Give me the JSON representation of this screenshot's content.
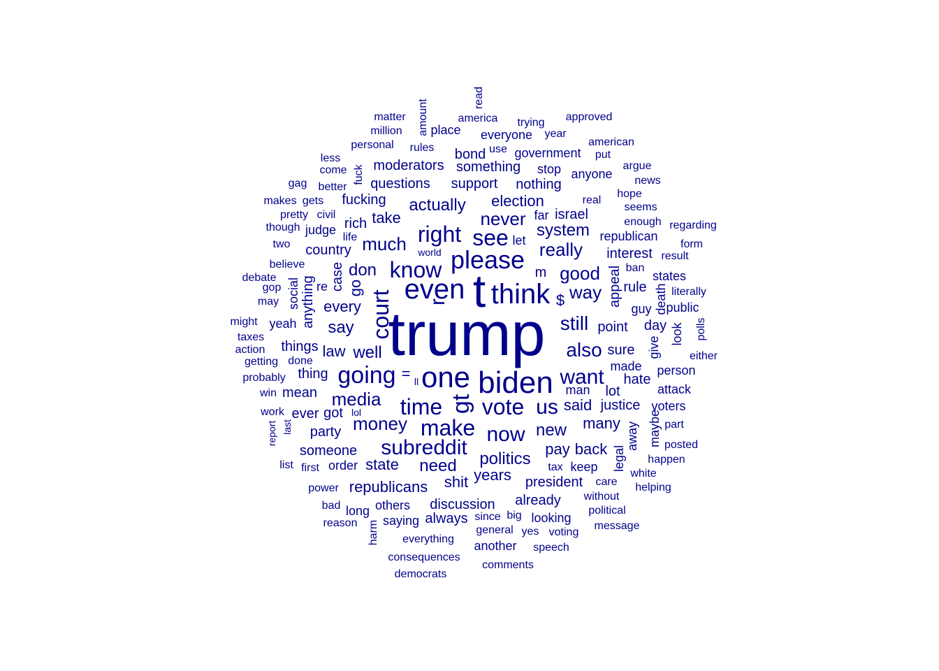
{
  "color": "#00008B",
  "words": [
    {
      "text": "trump",
      "size": 88
    },
    {
      "text": "t",
      "size": 66
    },
    {
      "text": "biden",
      "size": 44
    },
    {
      "text": "one",
      "size": 42
    },
    {
      "text": "even",
      "size": 40
    },
    {
      "text": "think",
      "size": 40
    },
    {
      "text": "please",
      "size": 36
    },
    {
      "text": "going",
      "size": 34
    },
    {
      "text": "gt",
      "size": 34
    },
    {
      "text": "court",
      "size": 32
    },
    {
      "text": "know",
      "size": 32
    },
    {
      "text": "right",
      "size": 32
    },
    {
      "text": "see",
      "size": 32
    },
    {
      "text": "time",
      "size": 32
    },
    {
      "text": "make",
      "size": 32
    },
    {
      "text": "vote",
      "size": 32
    },
    {
      "text": "us",
      "size": 30
    },
    {
      "text": "want",
      "size": 30
    },
    {
      "text": "subreddit",
      "size": 30
    },
    {
      "text": "now",
      "size": 30
    },
    {
      "text": "still",
      "size": 28
    },
    {
      "text": "also",
      "size": 28
    },
    {
      "text": "much",
      "size": 26
    },
    {
      "text": "media",
      "size": 26
    },
    {
      "text": "money",
      "size": 26
    },
    {
      "text": "never",
      "size": 26
    },
    {
      "text": "really",
      "size": 26
    },
    {
      "text": "way",
      "size": 26
    },
    {
      "text": "good",
      "size": 26
    },
    {
      "text": "actually",
      "size": 24
    },
    {
      "text": "don",
      "size": 24
    },
    {
      "text": "system",
      "size": 24
    },
    {
      "text": "say",
      "size": 24
    },
    {
      "text": "well",
      "size": 24
    },
    {
      "text": "election",
      "size": 22
    },
    {
      "text": "take",
      "size": 22
    },
    {
      "text": "every",
      "size": 22
    },
    {
      "text": "go",
      "size": 22
    },
    {
      "text": "case",
      "size": 20
    },
    {
      "text": "law",
      "size": 22
    },
    {
      "text": "said",
      "size": 22
    },
    {
      "text": "new",
      "size": 24
    },
    {
      "text": "many",
      "size": 22
    },
    {
      "text": "need",
      "size": 24
    },
    {
      "text": "politics",
      "size": 24
    },
    {
      "text": "pay",
      "size": 22
    },
    {
      "text": "back",
      "size": 22
    },
    {
      "text": "state",
      "size": 22
    },
    {
      "text": "years",
      "size": 22
    },
    {
      "text": "president",
      "size": 20
    },
    {
      "text": "republicans",
      "size": 22
    },
    {
      "text": "shit",
      "size": 22
    },
    {
      "text": "r",
      "size": 30
    },
    {
      "text": "m",
      "size": 20
    },
    {
      "text": "$",
      "size": 22
    },
    {
      "text": "=",
      "size": 22
    },
    {
      "text": "ll",
      "size": 14
    },
    {
      "text": "appeal",
      "size": 20
    },
    {
      "text": "point",
      "size": 20
    },
    {
      "text": "sure",
      "size": 20
    },
    {
      "text": "interest",
      "size": 20
    },
    {
      "text": "israel",
      "size": 20
    },
    {
      "text": "far",
      "size": 18
    },
    {
      "text": "republican",
      "size": 18
    },
    {
      "text": "support",
      "size": 20
    },
    {
      "text": "nothing",
      "size": 20
    },
    {
      "text": "questions",
      "size": 20
    },
    {
      "text": "fucking",
      "size": 20
    },
    {
      "text": "moderators",
      "size": 20
    },
    {
      "text": "something",
      "size": 20
    },
    {
      "text": "rich",
      "size": 20
    },
    {
      "text": "country",
      "size": 20
    },
    {
      "text": "judge",
      "size": 18
    },
    {
      "text": "anything",
      "size": 20
    },
    {
      "text": "social",
      "size": 18
    },
    {
      "text": "things",
      "size": 20
    },
    {
      "text": "thing",
      "size": 20
    },
    {
      "text": "mean",
      "size": 20
    },
    {
      "text": "ever",
      "size": 20
    },
    {
      "text": "got",
      "size": 20
    },
    {
      "text": "party",
      "size": 20
    },
    {
      "text": "someone",
      "size": 20
    },
    {
      "text": "order",
      "size": 18
    },
    {
      "text": "discussion",
      "size": 20
    },
    {
      "text": "already",
      "size": 20
    },
    {
      "text": "always",
      "size": 20
    },
    {
      "text": "saying",
      "size": 18
    },
    {
      "text": "looking",
      "size": 18
    },
    {
      "text": "lot",
      "size": 20
    },
    {
      "text": "justice",
      "size": 20
    },
    {
      "text": "hate",
      "size": 20
    },
    {
      "text": "made",
      "size": 18
    },
    {
      "text": "day",
      "size": 20
    },
    {
      "text": "rule",
      "size": 20
    },
    {
      "text": "guy",
      "size": 18
    },
    {
      "text": "death",
      "size": 18
    },
    {
      "text": "give",
      "size": 18
    },
    {
      "text": "look",
      "size": 18
    },
    {
      "text": "away",
      "size": 18
    },
    {
      "text": "legal",
      "size": 18
    },
    {
      "text": "maybe",
      "size": 18
    },
    {
      "text": "bond",
      "size": 20
    },
    {
      "text": "use",
      "size": 16
    },
    {
      "text": "government",
      "size": 18
    },
    {
      "text": "stop",
      "size": 18
    },
    {
      "text": "anyone",
      "size": 18
    },
    {
      "text": "let",
      "size": 18
    },
    {
      "text": "re",
      "size": 18
    },
    {
      "text": "yeah",
      "size": 18
    },
    {
      "text": "matter",
      "size": 16
    },
    {
      "text": "million",
      "size": 16
    },
    {
      "text": "personal",
      "size": 16
    },
    {
      "text": "amount",
      "size": 16
    },
    {
      "text": "place",
      "size": 18
    },
    {
      "text": "rules",
      "size": 16
    },
    {
      "text": "america",
      "size": 16
    },
    {
      "text": "read",
      "size": 16
    },
    {
      "text": "trying",
      "size": 16
    },
    {
      "text": "everyone",
      "size": 18
    },
    {
      "text": "year",
      "size": 16
    },
    {
      "text": "approved",
      "size": 16
    },
    {
      "text": "american",
      "size": 16
    },
    {
      "text": "put",
      "size": 16
    },
    {
      "text": "argue",
      "size": 16
    },
    {
      "text": "news",
      "size": 16
    },
    {
      "text": "hope",
      "size": 16
    },
    {
      "text": "seems",
      "size": 16
    },
    {
      "text": "enough",
      "size": 16
    },
    {
      "text": "regarding",
      "size": 16
    },
    {
      "text": "form",
      "size": 16
    },
    {
      "text": "result",
      "size": 16
    },
    {
      "text": "ban",
      "size": 16
    },
    {
      "text": "states",
      "size": 18
    },
    {
      "text": "literally",
      "size": 16
    },
    {
      "text": "public",
      "size": 18
    },
    {
      "text": "polls",
      "size": 16
    },
    {
      "text": "either",
      "size": 16
    },
    {
      "text": "person",
      "size": 18
    },
    {
      "text": "attack",
      "size": 18
    },
    {
      "text": "voters",
      "size": 18
    },
    {
      "text": "part",
      "size": 16
    },
    {
      "text": "posted",
      "size": 16
    },
    {
      "text": "happen",
      "size": 16
    },
    {
      "text": "white",
      "size": 16
    },
    {
      "text": "helping",
      "size": 16
    },
    {
      "text": "care",
      "size": 16
    },
    {
      "text": "without",
      "size": 16
    },
    {
      "text": "political",
      "size": 16
    },
    {
      "text": "message",
      "size": 16
    },
    {
      "text": "voting",
      "size": 16
    },
    {
      "text": "speech",
      "size": 16
    },
    {
      "text": "comments",
      "size": 16
    },
    {
      "text": "yes",
      "size": 16
    },
    {
      "text": "big",
      "size": 16
    },
    {
      "text": "since",
      "size": 16
    },
    {
      "text": "general",
      "size": 16
    },
    {
      "text": "another",
      "size": 18
    },
    {
      "text": "everything",
      "size": 16
    },
    {
      "text": "consequences",
      "size": 16
    },
    {
      "text": "democrats",
      "size": 16
    },
    {
      "text": "harm",
      "size": 16
    },
    {
      "text": "others",
      "size": 18
    },
    {
      "text": "long",
      "size": 18
    },
    {
      "text": "reason",
      "size": 16
    },
    {
      "text": "bad",
      "size": 16
    },
    {
      "text": "power",
      "size": 16
    },
    {
      "text": "first",
      "size": 16
    },
    {
      "text": "list",
      "size": 16
    },
    {
      "text": "report",
      "size": 14
    },
    {
      "text": "last",
      "size": 14
    },
    {
      "text": "work",
      "size": 16
    },
    {
      "text": "lol",
      "size": 14
    },
    {
      "text": "win",
      "size": 16
    },
    {
      "text": "probably",
      "size": 16
    },
    {
      "text": "getting",
      "size": 16
    },
    {
      "text": "done",
      "size": 16
    },
    {
      "text": "action",
      "size": 16
    },
    {
      "text": "taxes",
      "size": 16
    },
    {
      "text": "might",
      "size": 16
    },
    {
      "text": "may",
      "size": 16
    },
    {
      "text": "gop",
      "size": 16
    },
    {
      "text": "debate",
      "size": 16
    },
    {
      "text": "believe",
      "size": 16
    },
    {
      "text": "two",
      "size": 16
    },
    {
      "text": "life",
      "size": 16
    },
    {
      "text": "though",
      "size": 16
    },
    {
      "text": "pretty",
      "size": 16
    },
    {
      "text": "civil",
      "size": 16
    },
    {
      "text": "makes",
      "size": 16
    },
    {
      "text": "gets",
      "size": 16
    },
    {
      "text": "gag",
      "size": 16
    },
    {
      "text": "better",
      "size": 16
    },
    {
      "text": "fuck",
      "size": 16
    },
    {
      "text": "come",
      "size": 16
    },
    {
      "text": "less",
      "size": 16
    },
    {
      "text": "world",
      "size": 14
    },
    {
      "text": "real",
      "size": 16
    },
    {
      "text": "man",
      "size": 18
    },
    {
      "text": "tax",
      "size": 16
    },
    {
      "text": "keep",
      "size": 18
    }
  ]
}
